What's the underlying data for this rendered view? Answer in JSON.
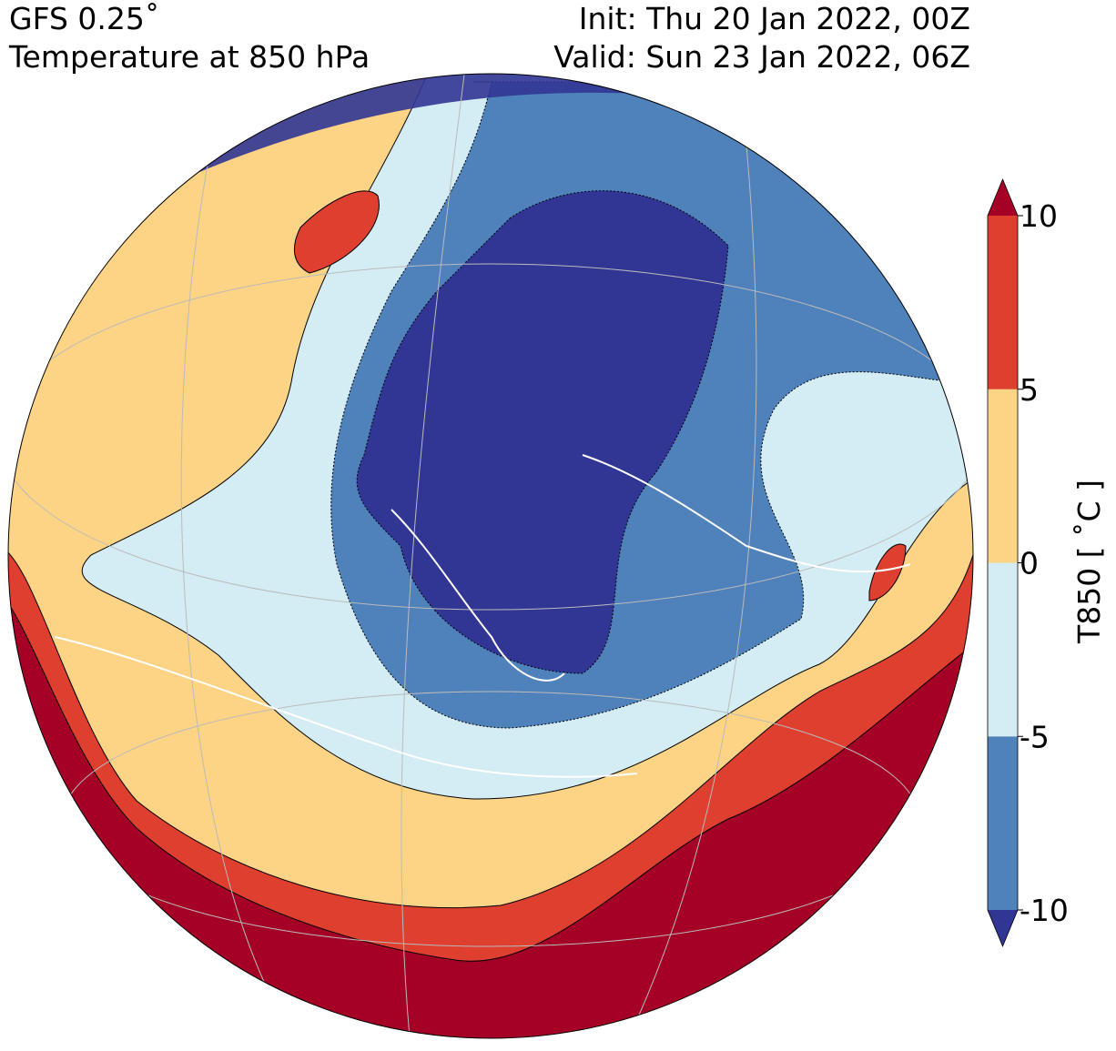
{
  "header": {
    "left": [
      "GFS 0.25˚",
      "Temperature at 850 hPa"
    ],
    "right": [
      "Init: Thu 20 Jan 2022, 00Z",
      "Valid: Sun 23 Jan 2022, 06Z"
    ]
  },
  "colorbar": {
    "label": "T850 [ ˚C ]",
    "lim": [
      -10,
      10
    ],
    "ticks": [
      -10,
      -5,
      0,
      5,
      10
    ],
    "colors": [
      "#4f81bb",
      "#d4ecf4",
      "#fdd385",
      "#de3f2e"
    ],
    "under": "#313695",
    "over": "#a50026"
  }
}
